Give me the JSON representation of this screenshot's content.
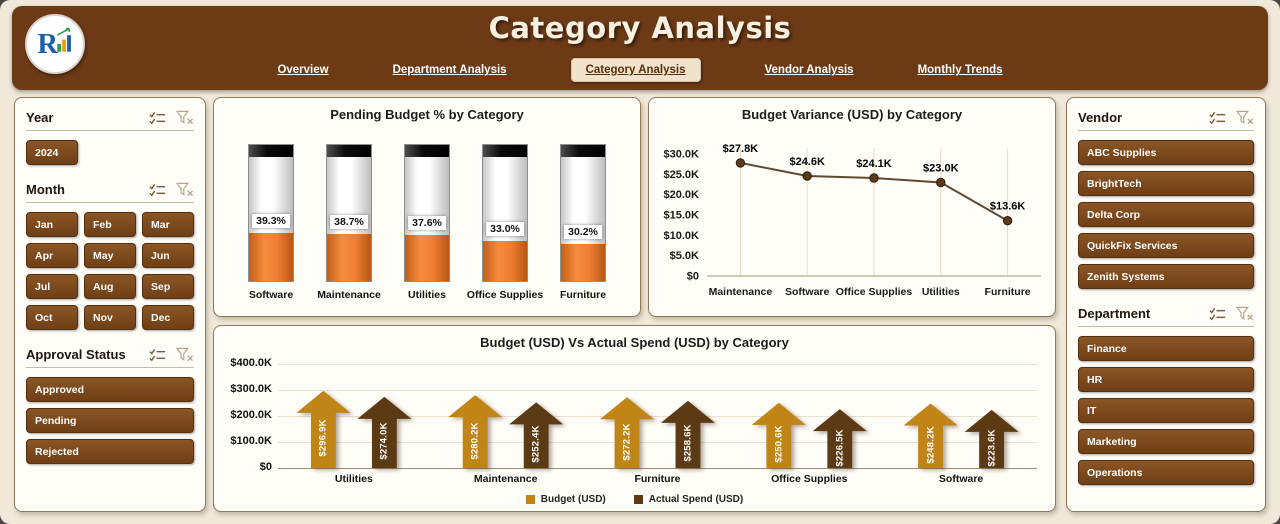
{
  "app": {
    "background": "#f0e9da",
    "header_color": "#6d3a16",
    "accent_orange": "#ed7d31",
    "button_color": "#7a4a1d"
  },
  "header": {
    "title": "Category Analysis",
    "tabs": [
      {
        "label": "Overview",
        "active": false
      },
      {
        "label": "Department Analysis",
        "active": false
      },
      {
        "label": "Category Analysis",
        "active": true
      },
      {
        "label": "Vendor Analysis",
        "active": false
      },
      {
        "label": "Monthly Trends",
        "active": false
      }
    ]
  },
  "icons": {
    "slicer": [
      "multiselect-icon",
      "clear-filter-icon"
    ]
  },
  "slicers": {
    "left": [
      {
        "title": "Year",
        "layout": "grid3",
        "items": [
          "2024"
        ]
      },
      {
        "title": "Month",
        "layout": "grid3",
        "items": [
          "Jan",
          "Feb",
          "Mar",
          "Apr",
          "May",
          "Jun",
          "Jul",
          "Aug",
          "Sep",
          "Oct",
          "Nov",
          "Dec"
        ]
      },
      {
        "title": "Approval Status",
        "layout": "list",
        "items": [
          "Approved",
          "Pending",
          "Rejected"
        ]
      }
    ],
    "right": [
      {
        "title": "Vendor",
        "layout": "list",
        "items": [
          "ABC Supplies",
          "BrightTech",
          "Delta Corp",
          "QuickFix Services",
          "Zenith Systems"
        ]
      },
      {
        "title": "Department",
        "layout": "list",
        "items": [
          "Finance",
          "HR",
          "IT",
          "Marketing",
          "Operations"
        ]
      }
    ]
  },
  "chart_data": [
    {
      "id": "pending_budget_pct",
      "type": "bar",
      "title": "Pending Budget % by Category",
      "categories": [
        "Software",
        "Maintenance",
        "Utilities",
        "Office Supplies",
        "Furniture"
      ],
      "values": [
        39.3,
        38.7,
        37.6,
        33.0,
        30.2
      ],
      "labels": [
        "39.3%",
        "38.7%",
        "37.6%",
        "33.0%",
        "30.2%"
      ],
      "ylim": [
        0,
        100
      ],
      "style": "thermometer",
      "fill_color": "#ed7d31"
    },
    {
      "id": "budget_variance",
      "type": "line",
      "title": "Budget Variance (USD) by Category",
      "categories": [
        "Maintenance",
        "Software",
        "Office Supplies",
        "Utilities",
        "Furniture"
      ],
      "values": [
        27.8,
        24.6,
        24.1,
        23.0,
        13.6
      ],
      "labels": [
        "$27.8K",
        "$24.6K",
        "$24.1K",
        "$23.0K",
        "$13.6K"
      ],
      "y_ticks": [
        "$30.0K",
        "$25.0K",
        "$20.0K",
        "$15.0K",
        "$10.0K",
        "$5.0K",
        "$0"
      ],
      "ylim": [
        0,
        30
      ],
      "line_color": "#5e4a33",
      "marker_color": "#5c3a1c",
      "grid": "vertical"
    },
    {
      "id": "budget_vs_actual",
      "type": "bar",
      "title": "Budget (USD) Vs Actual Spend (USD) by Category",
      "categories": [
        "Utilities",
        "Maintenance",
        "Furniture",
        "Office Supplies",
        "Software"
      ],
      "series": [
        {
          "name": "Budget (USD)",
          "color": "#c08417",
          "values": [
            296.9,
            280.2,
            272.2,
            250.6,
            248.2
          ],
          "labels": [
            "$296.9K",
            "$280.2K",
            "$272.2K",
            "$250.6K",
            "$248.2K"
          ]
        },
        {
          "name": "Actual Spend (USD)",
          "color": "#5c3a14",
          "values": [
            274.0,
            252.4,
            258.6,
            226.5,
            223.6
          ],
          "labels": [
            "$274.0K",
            "$252.4K",
            "$258.6K",
            "$226.5K",
            "$223.6K"
          ]
        }
      ],
      "y_ticks": [
        "$400.0K",
        "$300.0K",
        "$200.0K",
        "$100.0K",
        "$0"
      ],
      "ylim": [
        0,
        400
      ],
      "legend_position": "bottom",
      "style": "arrow-columns"
    }
  ]
}
